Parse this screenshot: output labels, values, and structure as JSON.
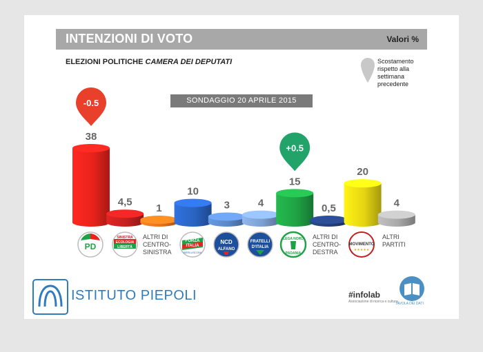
{
  "header": {
    "title": "INTENZIONI DI VOTO",
    "unit": "Valori %"
  },
  "subtitle_main": "ELEZIONI POLITICHE ",
  "subtitle_italic": "CAMERA DEI DEPUTATI",
  "survey_label": "SONDAGGIO 20 APRILE 2015",
  "legend_note": [
    "Scostamento",
    "rispetto alla",
    "settimana",
    "precedente"
  ],
  "chart_data": {
    "type": "bar",
    "categories": [
      "PD",
      "Sinistra Ecologia Libertà",
      "Altri di centro-sinistra",
      "Forza Italia",
      "NCD Alfano",
      "Fratelli d'Italia",
      "Lega Nord",
      "Altri di centro-destra",
      "MoVimento 5 Stelle",
      "Altri partiti"
    ],
    "values": [
      38,
      4.5,
      1,
      10,
      3,
      4,
      15,
      0.5,
      20,
      4
    ],
    "value_labels": [
      "38",
      "4,5",
      "1",
      "10",
      "3",
      "4",
      "15",
      "0,5",
      "20",
      "4"
    ],
    "colors": [
      "#e8231c",
      "#c41f1f",
      "#e8731c",
      "#2a63c2",
      "#5a86c6",
      "#7d9fd0",
      "#1fa245",
      "#243f7a",
      "#e4d412",
      "#a8a8a8"
    ],
    "changes": [
      {
        "index": 0,
        "label": "-0.5",
        "color": "#e8402a"
      },
      {
        "index": 6,
        "label": "+0.5",
        "color": "#22a36a"
      }
    ],
    "ylim": [
      0,
      40
    ]
  },
  "logos": {
    "pd": "PD",
    "sel": [
      "SINISTRA",
      "ECOLOGIA",
      "LIBERTÀ"
    ],
    "fi": [
      "FORZA",
      "ITALIA",
      "BERLUSCONI"
    ],
    "ncd": [
      "NCD",
      "ALFANO"
    ],
    "fdi": [
      "FRATELLI",
      "D'ITALIA"
    ],
    "lega": [
      "LEGA NORD",
      "PADANIA"
    ],
    "m5s": [
      "MOVIMENTO"
    ]
  },
  "text_labels": {
    "altri_cs": [
      "ALTRI DI",
      "CENTRO-",
      "SINISTRA"
    ],
    "altri_cd": [
      "ALTRI DI",
      "CENTRO-",
      "DESTRA"
    ],
    "altri_p": [
      "ALTRI",
      "PARTITI"
    ]
  },
  "footer": {
    "brand": "ISTITUTO PIEPOLI",
    "infolab": "#infolab",
    "infolab_sub": "Associazione di ricerca e cultura",
    "book_label": "TAVOLA DEI DATI"
  }
}
